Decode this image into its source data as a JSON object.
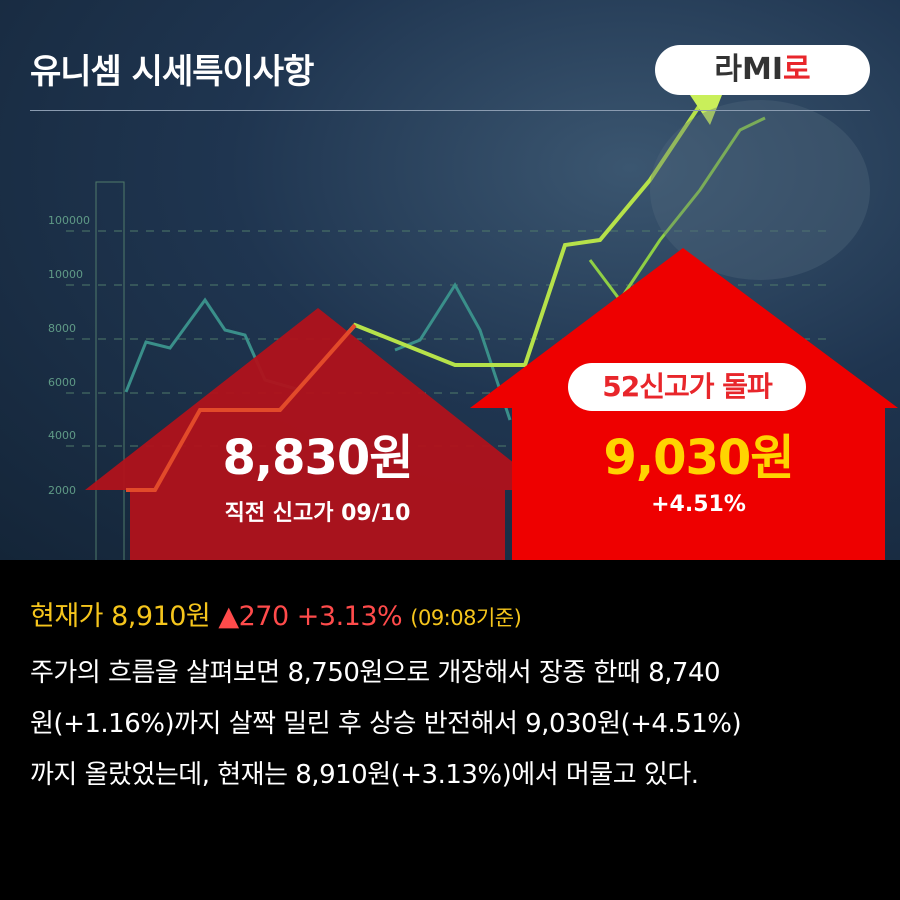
{
  "header": {
    "title": "유니셈 시세특이사항",
    "logo": {
      "text_main": "라MI",
      "text_accent": "로"
    }
  },
  "background_axis_ticks": [
    "100000",
    "10000",
    "8000",
    "6000",
    "4000",
    "2000"
  ],
  "previous_high": {
    "price": "8,830원",
    "label": "직전 신고가 09/10",
    "color": "#b0121b"
  },
  "new_high": {
    "badge": "52신고가 돌파",
    "price": "9,030원",
    "change": "+4.51%",
    "color": "#ee0000"
  },
  "status": {
    "label": "현재가",
    "price": "8,910원",
    "arrow": "▲",
    "change": "270",
    "percent": "+3.13%",
    "time": "(09:08기준)"
  },
  "description": [
    "주가의 흐름을 살펴보면 8,750원으로 개장해서 장중 한때 8,740",
    "원(+1.16%)까지 살짝 밀린 후 상승 반전해서 9,030원(+4.51%)",
    "까지 올랐었는데, 현재는 8,910원(+3.13%)에서 머물고 있다."
  ],
  "colors": {
    "price_yellow": "#f5c51c",
    "up_red": "#ff4b4b",
    "new_high_price": "#ffd400"
  }
}
